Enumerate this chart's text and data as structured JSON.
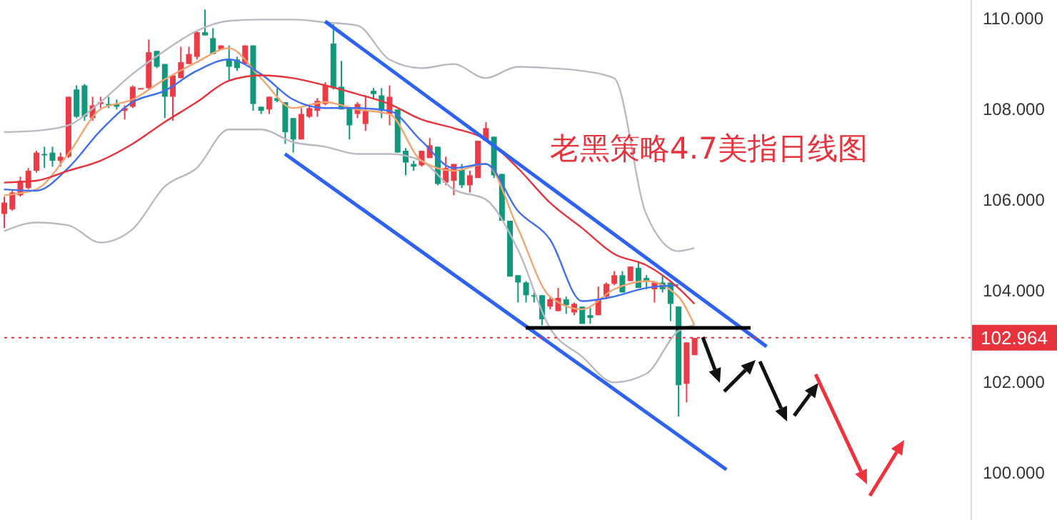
{
  "chart_data": {
    "type": "candlestick",
    "title": "老黑策略4.7美指日线图",
    "categories": [
      null,
      null,
      null,
      null,
      null,
      null,
      null,
      null,
      null,
      null,
      null,
      null,
      null,
      null,
      null,
      null,
      null,
      null,
      null,
      null,
      null,
      null,
      null,
      null,
      null,
      null,
      null,
      null,
      null,
      null,
      null,
      null,
      null,
      null,
      null,
      null,
      null,
      null,
      null,
      null,
      null,
      null,
      null,
      null,
      null,
      null,
      null,
      null,
      null,
      null,
      null,
      null,
      null,
      null,
      null,
      null,
      null,
      null,
      null,
      null,
      null,
      null,
      null,
      null,
      null,
      null,
      null,
      null,
      null,
      null,
      null,
      null,
      null,
      null,
      null,
      null,
      null,
      null,
      null,
      null,
      null,
      null,
      null,
      null,
      null,
      null,
      null,
      null,
      null,
      null,
      null,
      null,
      null,
      null,
      null,
      null,
      null,
      null,
      null,
      null,
      null,
      null,
      null,
      null,
      null,
      null,
      null,
      null,
      null,
      null,
      null,
      null,
      null,
      null,
      null,
      null,
      null,
      null,
      null,
      null,
      null
    ],
    "ohlc": [
      [
        105.69,
        106.07,
        105.38,
        105.94
      ],
      [
        105.79,
        106.23,
        105.76,
        106.16
      ],
      [
        106.1,
        106.51,
        106.07,
        106.42
      ],
      [
        106.26,
        106.7,
        106.23,
        106.64
      ],
      [
        106.64,
        107.08,
        106.6,
        107.04
      ],
      [
        107.01,
        107.17,
        106.7,
        106.98
      ],
      [
        107.04,
        107.17,
        106.73,
        106.86
      ],
      [
        106.86,
        107.04,
        106.73,
        106.95
      ],
      [
        106.95,
        108.27,
        106.92,
        108.27
      ],
      [
        108.43,
        108.52,
        107.8,
        107.83
      ],
      [
        108.52,
        108.55,
        107.74,
        107.83
      ],
      [
        107.8,
        108.27,
        107.74,
        108.08
      ],
      [
        108.11,
        108.27,
        108.02,
        108.15
      ],
      [
        108.11,
        108.27,
        108.02,
        108.08
      ],
      [
        108.11,
        108.21,
        107.99,
        108.05
      ],
      [
        107.96,
        108.08,
        107.77,
        108.02
      ],
      [
        108.05,
        108.52,
        108.02,
        108.49
      ],
      [
        108.44,
        108.46,
        108.44,
        108.46
      ],
      [
        108.46,
        109.53,
        108.43,
        109.25
      ],
      [
        109.28,
        109.28,
        108.9,
        108.93
      ],
      [
        108.99,
        108.99,
        107.8,
        108.27
      ],
      [
        108.27,
        108.74,
        107.74,
        108.74
      ],
      [
        108.68,
        109.37,
        108.68,
        109.03
      ],
      [
        108.99,
        109.37,
        108.99,
        109.21
      ],
      [
        109.15,
        109.72,
        109.09,
        109.69
      ],
      [
        109.69,
        110.19,
        109.62,
        109.62
      ],
      [
        109.56,
        109.78,
        109.21,
        109.21
      ],
      [
        109.31,
        109.4,
        109.31,
        109.4
      ],
      [
        109.09,
        109.4,
        108.62,
        108.93
      ],
      [
        109.09,
        109.15,
        108.84,
        108.9
      ],
      [
        108.99,
        109.4,
        108.99,
        109.4
      ],
      [
        109.4,
        109.4,
        107.96,
        108.11
      ],
      [
        108.05,
        108.05,
        107.89,
        107.96
      ],
      [
        107.99,
        108.27,
        107.89,
        108.27
      ],
      [
        108.24,
        108.46,
        108.15,
        108.18
      ],
      [
        108.15,
        108.15,
        107.23,
        107.49
      ],
      [
        107.8,
        107.8,
        107.04,
        107.33
      ],
      [
        107.33,
        108.02,
        107.33,
        107.89
      ],
      [
        107.83,
        108.08,
        107.8,
        108.02
      ],
      [
        107.96,
        108.24,
        107.83,
        108.18
      ],
      [
        108.11,
        108.59,
        108.08,
        108.52
      ],
      [
        109.44,
        109.87,
        108.43,
        108.46
      ],
      [
        108.49,
        109.06,
        107.99,
        107.99
      ],
      [
        108.02,
        108.05,
        107.33,
        107.64
      ],
      [
        107.89,
        108.15,
        107.8,
        108.11
      ],
      [
        107.67,
        108.3,
        107.52,
        107.96
      ],
      [
        108.4,
        108.46,
        108.21,
        108.33
      ],
      [
        108.3,
        108.46,
        107.8,
        107.96
      ],
      [
        107.89,
        108.52,
        107.64,
        108.27
      ],
      [
        107.99,
        107.99,
        107.04,
        107.04
      ],
      [
        107.08,
        107.14,
        106.54,
        106.82
      ],
      [
        106.79,
        106.86,
        106.64,
        106.73
      ],
      [
        106.76,
        107.08,
        106.73,
        107.08
      ],
      [
        106.92,
        107.36,
        106.92,
        107.2
      ],
      [
        107.17,
        107.17,
        106.32,
        106.35
      ],
      [
        106.38,
        106.95,
        106.32,
        106.7
      ],
      [
        106.42,
        106.79,
        106.1,
        106.79
      ],
      [
        106.67,
        106.79,
        106.26,
        106.32
      ],
      [
        106.32,
        106.64,
        106.16,
        106.54
      ],
      [
        106.48,
        107.3,
        106.48,
        107.3
      ],
      [
        107.3,
        107.71,
        107.3,
        107.58
      ],
      [
        107.39,
        107.39,
        106.48,
        106.54
      ],
      [
        106.57,
        106.57,
        105.54,
        105.54
      ],
      [
        105.54,
        105.54,
        104.31,
        104.31
      ],
      [
        104.34,
        104.34,
        103.74,
        104.18
      ],
      [
        104.18,
        104.21,
        103.74,
        103.9
      ],
      [
        103.9,
        103.96,
        103.74,
        103.87
      ],
      [
        103.9,
        103.9,
        103.24,
        103.37
      ],
      [
        103.65,
        103.87,
        103.59,
        103.81
      ],
      [
        103.55,
        104.06,
        103.55,
        103.84
      ],
      [
        103.81,
        103.87,
        103.49,
        103.68
      ],
      [
        103.52,
        103.74,
        103.46,
        103.71
      ],
      [
        103.65,
        103.65,
        103.27,
        103.27
      ],
      [
        103.46,
        103.62,
        103.27,
        103.4
      ],
      [
        103.46,
        104.09,
        103.46,
        103.81
      ],
      [
        103.87,
        104.18,
        103.81,
        104.15
      ],
      [
        104.15,
        104.43,
        104.12,
        104.34
      ],
      [
        104.34,
        104.43,
        103.96,
        103.96
      ],
      [
        104.21,
        104.53,
        104.21,
        104.53
      ],
      [
        104.5,
        104.65,
        104.06,
        104.06
      ],
      [
        104.28,
        104.34,
        104.03,
        104.21
      ],
      [
        104.03,
        104.21,
        103.74,
        104.18
      ],
      [
        104.18,
        104.34,
        103.96,
        104.03
      ],
      [
        104.18,
        104.18,
        103.33,
        103.71
      ],
      [
        103.65,
        103.65,
        101.23,
        101.92
      ],
      [
        101.95,
        102.86,
        101.54,
        102.86
      ],
      [
        102.58,
        102.96,
        102.58,
        102.96
      ],
      null,
      null,
      null,
      null,
      null,
      null,
      null,
      null,
      null,
      null,
      null,
      null,
      null,
      null,
      null,
      null,
      null,
      null,
      null,
      null,
      null,
      null,
      null,
      null,
      null,
      null,
      null,
      null,
      null,
      null,
      null,
      null,
      null,
      null
    ],
    "colors": [
      "#eb3b47",
      "#eb3b47",
      "#eb3b47",
      "#eb3b47",
      "#eb3b47",
      "#11987b",
      "#11987b",
      "#eb3b47",
      "#eb3b47",
      "#11987b",
      "#11987b",
      "#eb3b47",
      "#eb3b47",
      "#11987b",
      "#11987b",
      "#eb3b47",
      "#eb3b47",
      "#eb3b47",
      "#eb3b47",
      "#11987b",
      "#11987b",
      "#eb3b47",
      "#eb3b47",
      "#eb3b47",
      "#eb3b47",
      "#11987b",
      "#11987b",
      "#eb3b47",
      "#11987b",
      "#11987b",
      "#eb3b47",
      "#11987b",
      "#11987b",
      "#eb3b47",
      "#11987b",
      "#11987b",
      "#11987b",
      "#eb3b47",
      "#eb3b47",
      "#eb3b47",
      "#eb3b47",
      "#11987b",
      "#11987b",
      "#11987b",
      "#eb3b47",
      "#eb3b47",
      "#11987b",
      "#11987b",
      "#eb3b47",
      "#11987b",
      "#11987b",
      "#11987b",
      "#eb3b47",
      "#eb3b47",
      "#11987b",
      "#eb3b47",
      "#eb3b47",
      "#11987b",
      "#eb3b47",
      "#eb3b47",
      "#eb3b47",
      "#11987b",
      "#11987b",
      "#11987b",
      "#11987b",
      "#11987b",
      "#11987b",
      "#11987b",
      "#eb3b47",
      "#eb3b47",
      "#11987b",
      "#eb3b47",
      "#11987b",
      "#11987b",
      "#eb3b47",
      "#eb3b47",
      "#eb3b47",
      "#11987b",
      "#eb3b47",
      "#11987b",
      "#11987b",
      "#eb3b47",
      "#11987b",
      "#11987b",
      "#11987b",
      "#eb3b47",
      "#eb3b47",
      null,
      null,
      null,
      null,
      null,
      null,
      null,
      null,
      null,
      null,
      null,
      null,
      null,
      null,
      null,
      null,
      null,
      null,
      null,
      null,
      null,
      null,
      null,
      null,
      null,
      null,
      null,
      null,
      null,
      null,
      null,
      null,
      null,
      null
    ],
    "series": [
      {
        "type": "line",
        "color": "#b9b9c2",
        "values": [
          107.49,
          null,
          null,
          null,
          107.52,
          null,
          null,
          null,
          107.64,
          null,
          null,
          null,
          108.15,
          null,
          null,
          null,
          108.77,
          null,
          null,
          null,
          109.28,
          null,
          null,
          null,
          109.72,
          null,
          null,
          null,
          109.94,
          null,
          null,
          null,
          109.97,
          null,
          null,
          null,
          109.97,
          null,
          null,
          null,
          109.91,
          null,
          null,
          null,
          109.84,
          null,
          null,
          null,
          109.09,
          null,
          null,
          null,
          108.9,
          null,
          null,
          null,
          108.99,
          null,
          null,
          null,
          108.68,
          null,
          null,
          null,
          108.93,
          null,
          null,
          null,
          108.9,
          null,
          null,
          null,
          108.84,
          null,
          null,
          null,
          108.68,
          null,
          null,
          null,
          105.69,
          null,
          null,
          null,
          104.87,
          null,
          104.94,
          null,
          null,
          null,
          null,
          null,
          null,
          null,
          null,
          null,
          null,
          null,
          null,
          null,
          null,
          null,
          null,
          null,
          null,
          null,
          null,
          null,
          null,
          null,
          null,
          null,
          null,
          null,
          null,
          null,
          null,
          null,
          null,
          null,
          null
        ]
      },
      {
        "type": "line",
        "color": "#b9b9c2",
        "values": [
          105.31,
          null,
          null,
          null,
          105.5,
          null,
          null,
          null,
          105.44,
          null,
          null,
          null,
          105.06,
          null,
          null,
          null,
          105.35,
          null,
          null,
          null,
          106.29,
          null,
          null,
          null,
          106.7,
          null,
          null,
          null,
          107.55,
          null,
          null,
          null,
          107.55,
          null,
          null,
          null,
          107.27,
          null,
          null,
          null,
          107.17,
          null,
          null,
          null,
          107.01,
          null,
          null,
          null,
          107.01,
          null,
          null,
          null,
          106.86,
          null,
          null,
          null,
          106.23,
          null,
          null,
          null,
          106.01,
          null,
          null,
          null,
          104.91,
          null,
          null,
          null,
          103.18,
          null,
          null,
          null,
          102.55,
          null,
          null,
          null,
          101.98,
          null,
          null,
          null,
          102.17,
          null,
          null,
          null,
          103.11,
          null,
          103.24,
          null,
          null,
          null,
          null,
          null,
          null,
          null,
          null,
          null,
          null,
          null,
          null,
          null,
          null,
          null,
          null,
          null,
          null,
          null,
          null,
          null,
          null,
          null,
          null,
          null,
          null,
          null,
          null,
          null,
          null,
          null,
          null,
          null,
          null
        ]
      },
      {
        "type": "line",
        "color": "#f4a46e",
        "values": [
          106.1,
          null,
          null,
          null,
          106.23,
          null,
          null,
          null,
          107.01,
          null,
          null,
          null,
          107.99,
          null,
          null,
          null,
          108.21,
          null,
          null,
          null,
          108.65,
          null,
          null,
          null,
          109.03,
          null,
          null,
          null,
          109.34,
          null,
          null,
          null,
          108.68,
          null,
          null,
          null,
          108.02,
          null,
          null,
          null,
          108.15,
          null,
          null,
          null,
          107.99,
          null,
          null,
          null,
          107.89,
          null,
          null,
          null,
          106.86,
          null,
          null,
          null,
          106.64,
          null,
          null,
          null,
          106.79,
          null,
          null,
          null,
          105.38,
          null,
          null,
          null,
          103.87,
          null,
          null,
          null,
          103.59,
          null,
          null,
          null,
          104.03,
          null,
          null,
          null,
          104.21,
          null,
          null,
          null,
          103.87,
          null,
          103.24,
          null,
          null,
          null,
          null,
          null,
          null,
          null,
          null,
          null,
          null,
          null,
          null,
          null,
          null,
          null,
          null,
          null,
          null,
          null,
          null,
          null,
          null,
          null,
          null,
          null,
          null,
          null,
          null,
          null,
          null,
          null,
          null,
          null,
          null
        ]
      },
      {
        "type": "line",
        "color": "#3f6ff0",
        "values": [
          106.23,
          null,
          null,
          null,
          106.2,
          null,
          null,
          null,
          106.7,
          null,
          null,
          null,
          107.52,
          null,
          null,
          null,
          108.15,
          null,
          null,
          null,
          108.4,
          null,
          null,
          null,
          108.84,
          null,
          null,
          null,
          109.09,
          null,
          null,
          null,
          108.77,
          null,
          null,
          null,
          108.21,
          null,
          null,
          null,
          108.02,
          null,
          null,
          null,
          108.02,
          null,
          null,
          null,
          107.96,
          null,
          null,
          null,
          107.3,
          null,
          null,
          null,
          106.7,
          null,
          null,
          null,
          106.79,
          null,
          null,
          null,
          105.76,
          null,
          null,
          null,
          105.13,
          null,
          null,
          null,
          103.77,
          null,
          null,
          null,
          103.87,
          null,
          null,
          null,
          104.06,
          null,
          null,
          null,
          104.12,
          null,
          null,
          null,
          null,
          null,
          null,
          null,
          null,
          null,
          null,
          null,
          null,
          null,
          null,
          null,
          null,
          null,
          null,
          null,
          null,
          null,
          null,
          null,
          null,
          null,
          null,
          null,
          null,
          null,
          null,
          null,
          null,
          null,
          null,
          null,
          null
        ]
      },
      {
        "type": "line",
        "color": "#e8323c",
        "values": [
          106.38,
          null,
          null,
          null,
          106.42,
          null,
          null,
          null,
          106.64,
          null,
          null,
          null,
          106.86,
          null,
          null,
          null,
          107.23,
          null,
          null,
          null,
          107.71,
          null,
          null,
          null,
          108.15,
          null,
          null,
          null,
          108.62,
          null,
          null,
          null,
          108.74,
          null,
          null,
          null,
          108.68,
          null,
          null,
          null,
          108.52,
          null,
          null,
          null,
          108.33,
          null,
          null,
          null,
          108.11,
          null,
          null,
          null,
          107.77,
          null,
          null,
          null,
          107.58,
          null,
          null,
          null,
          107.33,
          null,
          null,
          null,
          106.7,
          null,
          null,
          null,
          105.94,
          null,
          null,
          null,
          105.38,
          null,
          null,
          null,
          104.81,
          null,
          null,
          null,
          104.56,
          null,
          null,
          null,
          104.06,
          null,
          103.71,
          null,
          null,
          null,
          null,
          null,
          null,
          null,
          null,
          null,
          null,
          null,
          null,
          null,
          null,
          null,
          null,
          null,
          null,
          null,
          null,
          null,
          null,
          null,
          null,
          null,
          null,
          null,
          null,
          null,
          null,
          null,
          null,
          null,
          null
        ]
      },
      {
        "type": "line",
        "color": "#2e62f5",
        "values": [
          null,
          null,
          null,
          null,
          null,
          null,
          null,
          null,
          null,
          null,
          null,
          null,
          null,
          null,
          null,
          null,
          null,
          null,
          null,
          null,
          null,
          null,
          null,
          null,
          null,
          null,
          null,
          null,
          null,
          null,
          null,
          null,
          null,
          null,
          null,
          null,
          null,
          null,
          null,
          null,
          109.93,
          null,
          null,
          null,
          null,
          null,
          null,
          null,
          null,
          null,
          null,
          null,
          null,
          null,
          null,
          null,
          null,
          null,
          null,
          null,
          null,
          null,
          null,
          null,
          null,
          null,
          null,
          null,
          null,
          null,
          null,
          null,
          null,
          null,
          null,
          null,
          null,
          null,
          null,
          null,
          null,
          null,
          null,
          null,
          null,
          null,
          null,
          null,
          null,
          null,
          null,
          null,
          null,
          null,
          null,
          102.77,
          null,
          null,
          null,
          null,
          null,
          null,
          null,
          null,
          null,
          null,
          null,
          null,
          null,
          null,
          null,
          null,
          null,
          null,
          null,
          null,
          null,
          null,
          null,
          null,
          null
        ]
      },
      {
        "type": "line",
        "color": "#2e62f5",
        "values": [
          null,
          null,
          null,
          null,
          null,
          null,
          null,
          null,
          null,
          null,
          null,
          null,
          null,
          null,
          null,
          null,
          null,
          null,
          null,
          null,
          null,
          null,
          null,
          null,
          null,
          null,
          null,
          null,
          null,
          null,
          null,
          null,
          null,
          null,
          null,
          107.01,
          null,
          null,
          null,
          null,
          null,
          null,
          null,
          null,
          null,
          null,
          null,
          null,
          null,
          null,
          null,
          null,
          null,
          null,
          null,
          null,
          null,
          null,
          null,
          null,
          null,
          null,
          null,
          null,
          null,
          null,
          null,
          null,
          null,
          null,
          null,
          null,
          null,
          null,
          null,
          null,
          null,
          null,
          null,
          null,
          null,
          null,
          null,
          null,
          null,
          null,
          null,
          null,
          null,
          null,
          100.06,
          null,
          null,
          null,
          null,
          null,
          null,
          null,
          null,
          null,
          null,
          null,
          null,
          null,
          null,
          null,
          null,
          null,
          null,
          null,
          null,
          null,
          null,
          null,
          null,
          null,
          null,
          null,
          null,
          null,
          null
        ]
      },
      {
        "type": "line",
        "color": "#000000",
        "values": [
          null,
          null,
          null,
          null,
          null,
          null,
          null,
          null,
          null,
          null,
          null,
          null,
          null,
          null,
          null,
          null,
          null,
          null,
          null,
          null,
          null,
          null,
          null,
          null,
          null,
          null,
          null,
          null,
          null,
          null,
          null,
          null,
          null,
          null,
          null,
          null,
          null,
          null,
          null,
          null,
          null,
          null,
          null,
          null,
          null,
          null,
          null,
          null,
          null,
          null,
          null,
          null,
          null,
          null,
          null,
          null,
          null,
          null,
          null,
          null,
          null,
          null,
          null,
          null,
          null,
          103.18,
          null,
          null,
          null,
          null,
          null,
          null,
          null,
          null,
          null,
          null,
          null,
          null,
          null,
          null,
          null,
          null,
          null,
          null,
          null,
          null,
          null,
          null,
          null,
          null,
          null,
          null,
          null,
          103.18,
          null,
          null,
          null,
          null,
          null,
          null,
          null,
          null,
          null,
          null,
          null,
          null,
          null,
          null,
          null,
          null,
          null,
          null,
          null,
          null,
          null,
          null,
          null,
          null,
          null,
          null,
          null
        ]
      }
    ],
    "ylim": [
      98.95,
      110.4
    ],
    "yticks": [
      {
        "value": 100,
        "label": "100.000"
      },
      {
        "value": 102,
        "label": "102.000"
      },
      {
        "value": 104,
        "label": "104.000"
      },
      {
        "value": 106,
        "label": "106.000"
      },
      {
        "value": 108,
        "label": "108.000"
      },
      {
        "value": 110,
        "label": "110.000"
      }
    ],
    "ref_lines": [
      {
        "axis": "y",
        "value": 102.964,
        "label": "102.964",
        "color": "#e8323c",
        "line_style": "dotted"
      }
    ],
    "tick_labels": "y"
  }
}
